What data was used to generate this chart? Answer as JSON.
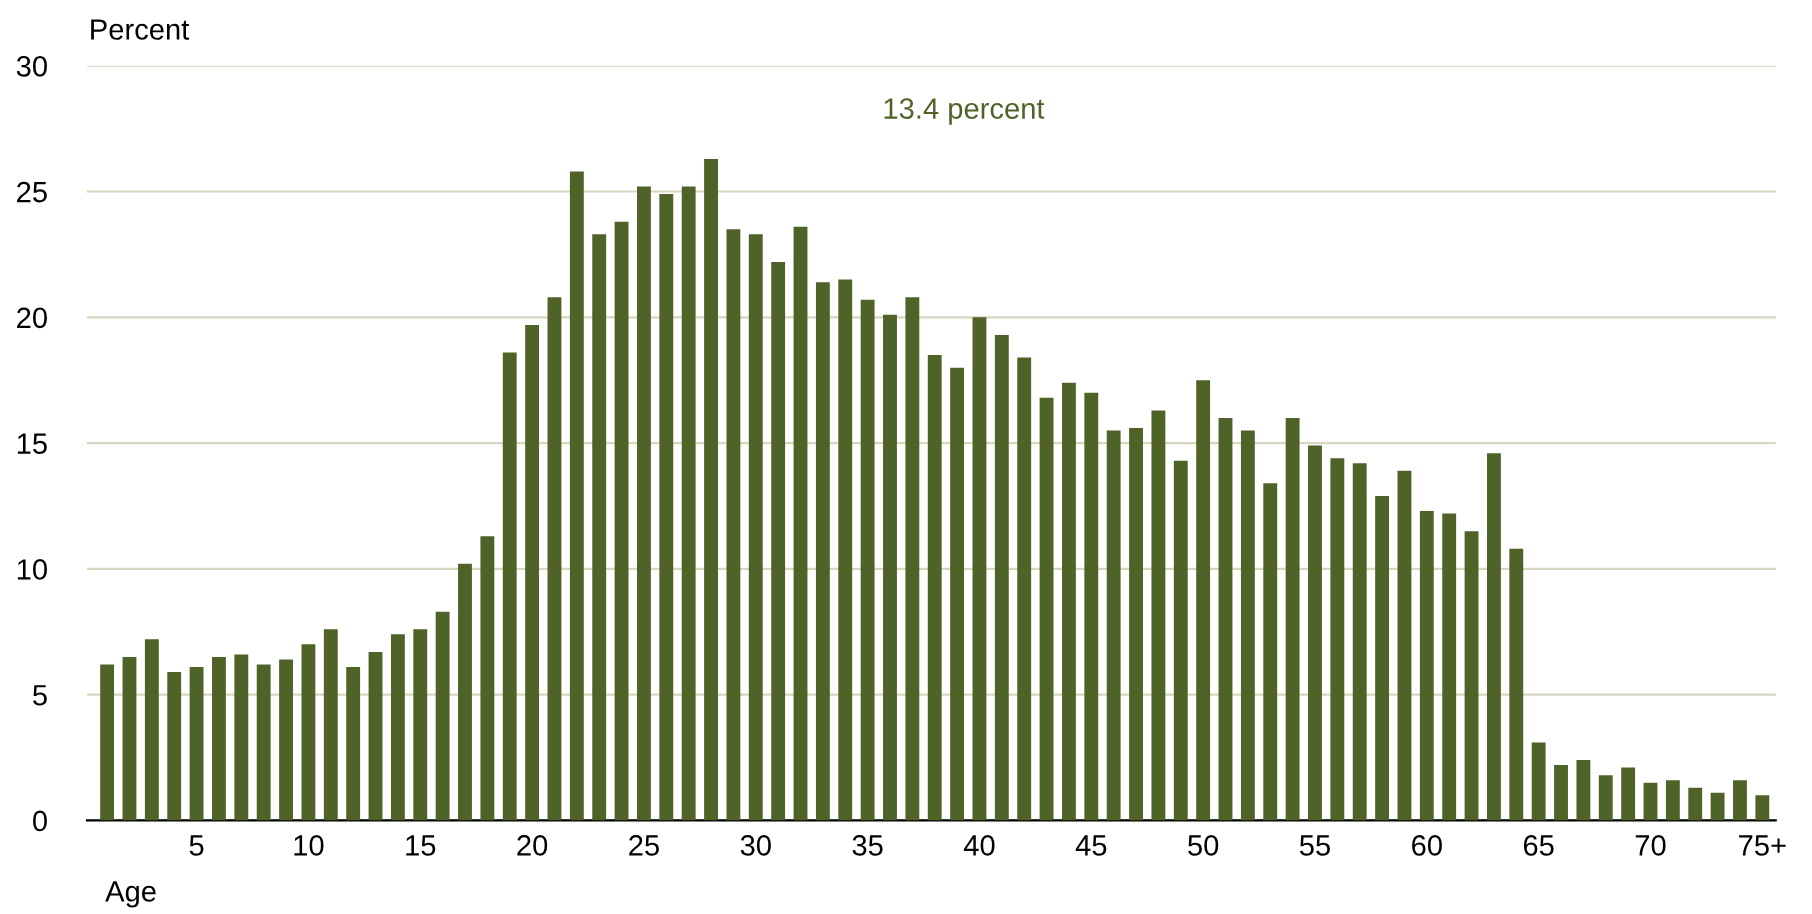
{
  "chart_data": {
    "type": "bar",
    "ylabel": "Percent",
    "xlabel": "Age",
    "annotations": [
      "13.4 percent"
    ],
    "categories": [
      null,
      null,
      null,
      null,
      "5",
      null,
      null,
      null,
      null,
      "10",
      null,
      null,
      null,
      null,
      "15",
      null,
      null,
      null,
      null,
      "20",
      null,
      null,
      null,
      null,
      "25",
      null,
      null,
      null,
      null,
      "30",
      null,
      null,
      null,
      null,
      "35",
      null,
      null,
      null,
      null,
      "40",
      null,
      null,
      null,
      null,
      "45",
      null,
      null,
      null,
      null,
      "50",
      null,
      null,
      null,
      null,
      "55",
      null,
      null,
      null,
      null,
      "60",
      null,
      null,
      null,
      null,
      "65",
      null,
      null,
      null,
      null,
      "70",
      null,
      null,
      null,
      null,
      "75+"
    ],
    "values": [
      6.2,
      6.5,
      7.2,
      5.9,
      6.1,
      6.5,
      6.6,
      6.2,
      6.4,
      7.0,
      7.6,
      6.1,
      6.7,
      7.4,
      7.6,
      8.3,
      10.2,
      11.3,
      18.6,
      19.7,
      20.8,
      25.8,
      23.3,
      23.8,
      25.2,
      24.9,
      25.2,
      26.3,
      23.5,
      23.3,
      22.2,
      23.6,
      21.4,
      21.5,
      20.7,
      20.1,
      20.8,
      18.5,
      18.0,
      20.0,
      19.3,
      18.4,
      16.8,
      17.4,
      17.0,
      15.5,
      15.6,
      16.3,
      14.3,
      17.5,
      16.0,
      15.5,
      13.4,
      16.0,
      14.9,
      14.4,
      14.2,
      12.9,
      13.9,
      12.3,
      12.2,
      11.5,
      14.6,
      10.8,
      3.1,
      2.2,
      2.4,
      1.8,
      2.1,
      1.5,
      1.6,
      1.3,
      1.1,
      1.6,
      1.0
    ],
    "color": "#4f6228",
    "ylim": [
      0,
      30
    ],
    "yticks": [
      0,
      5,
      10,
      15,
      20,
      25,
      30
    ],
    "grid": "y"
  }
}
